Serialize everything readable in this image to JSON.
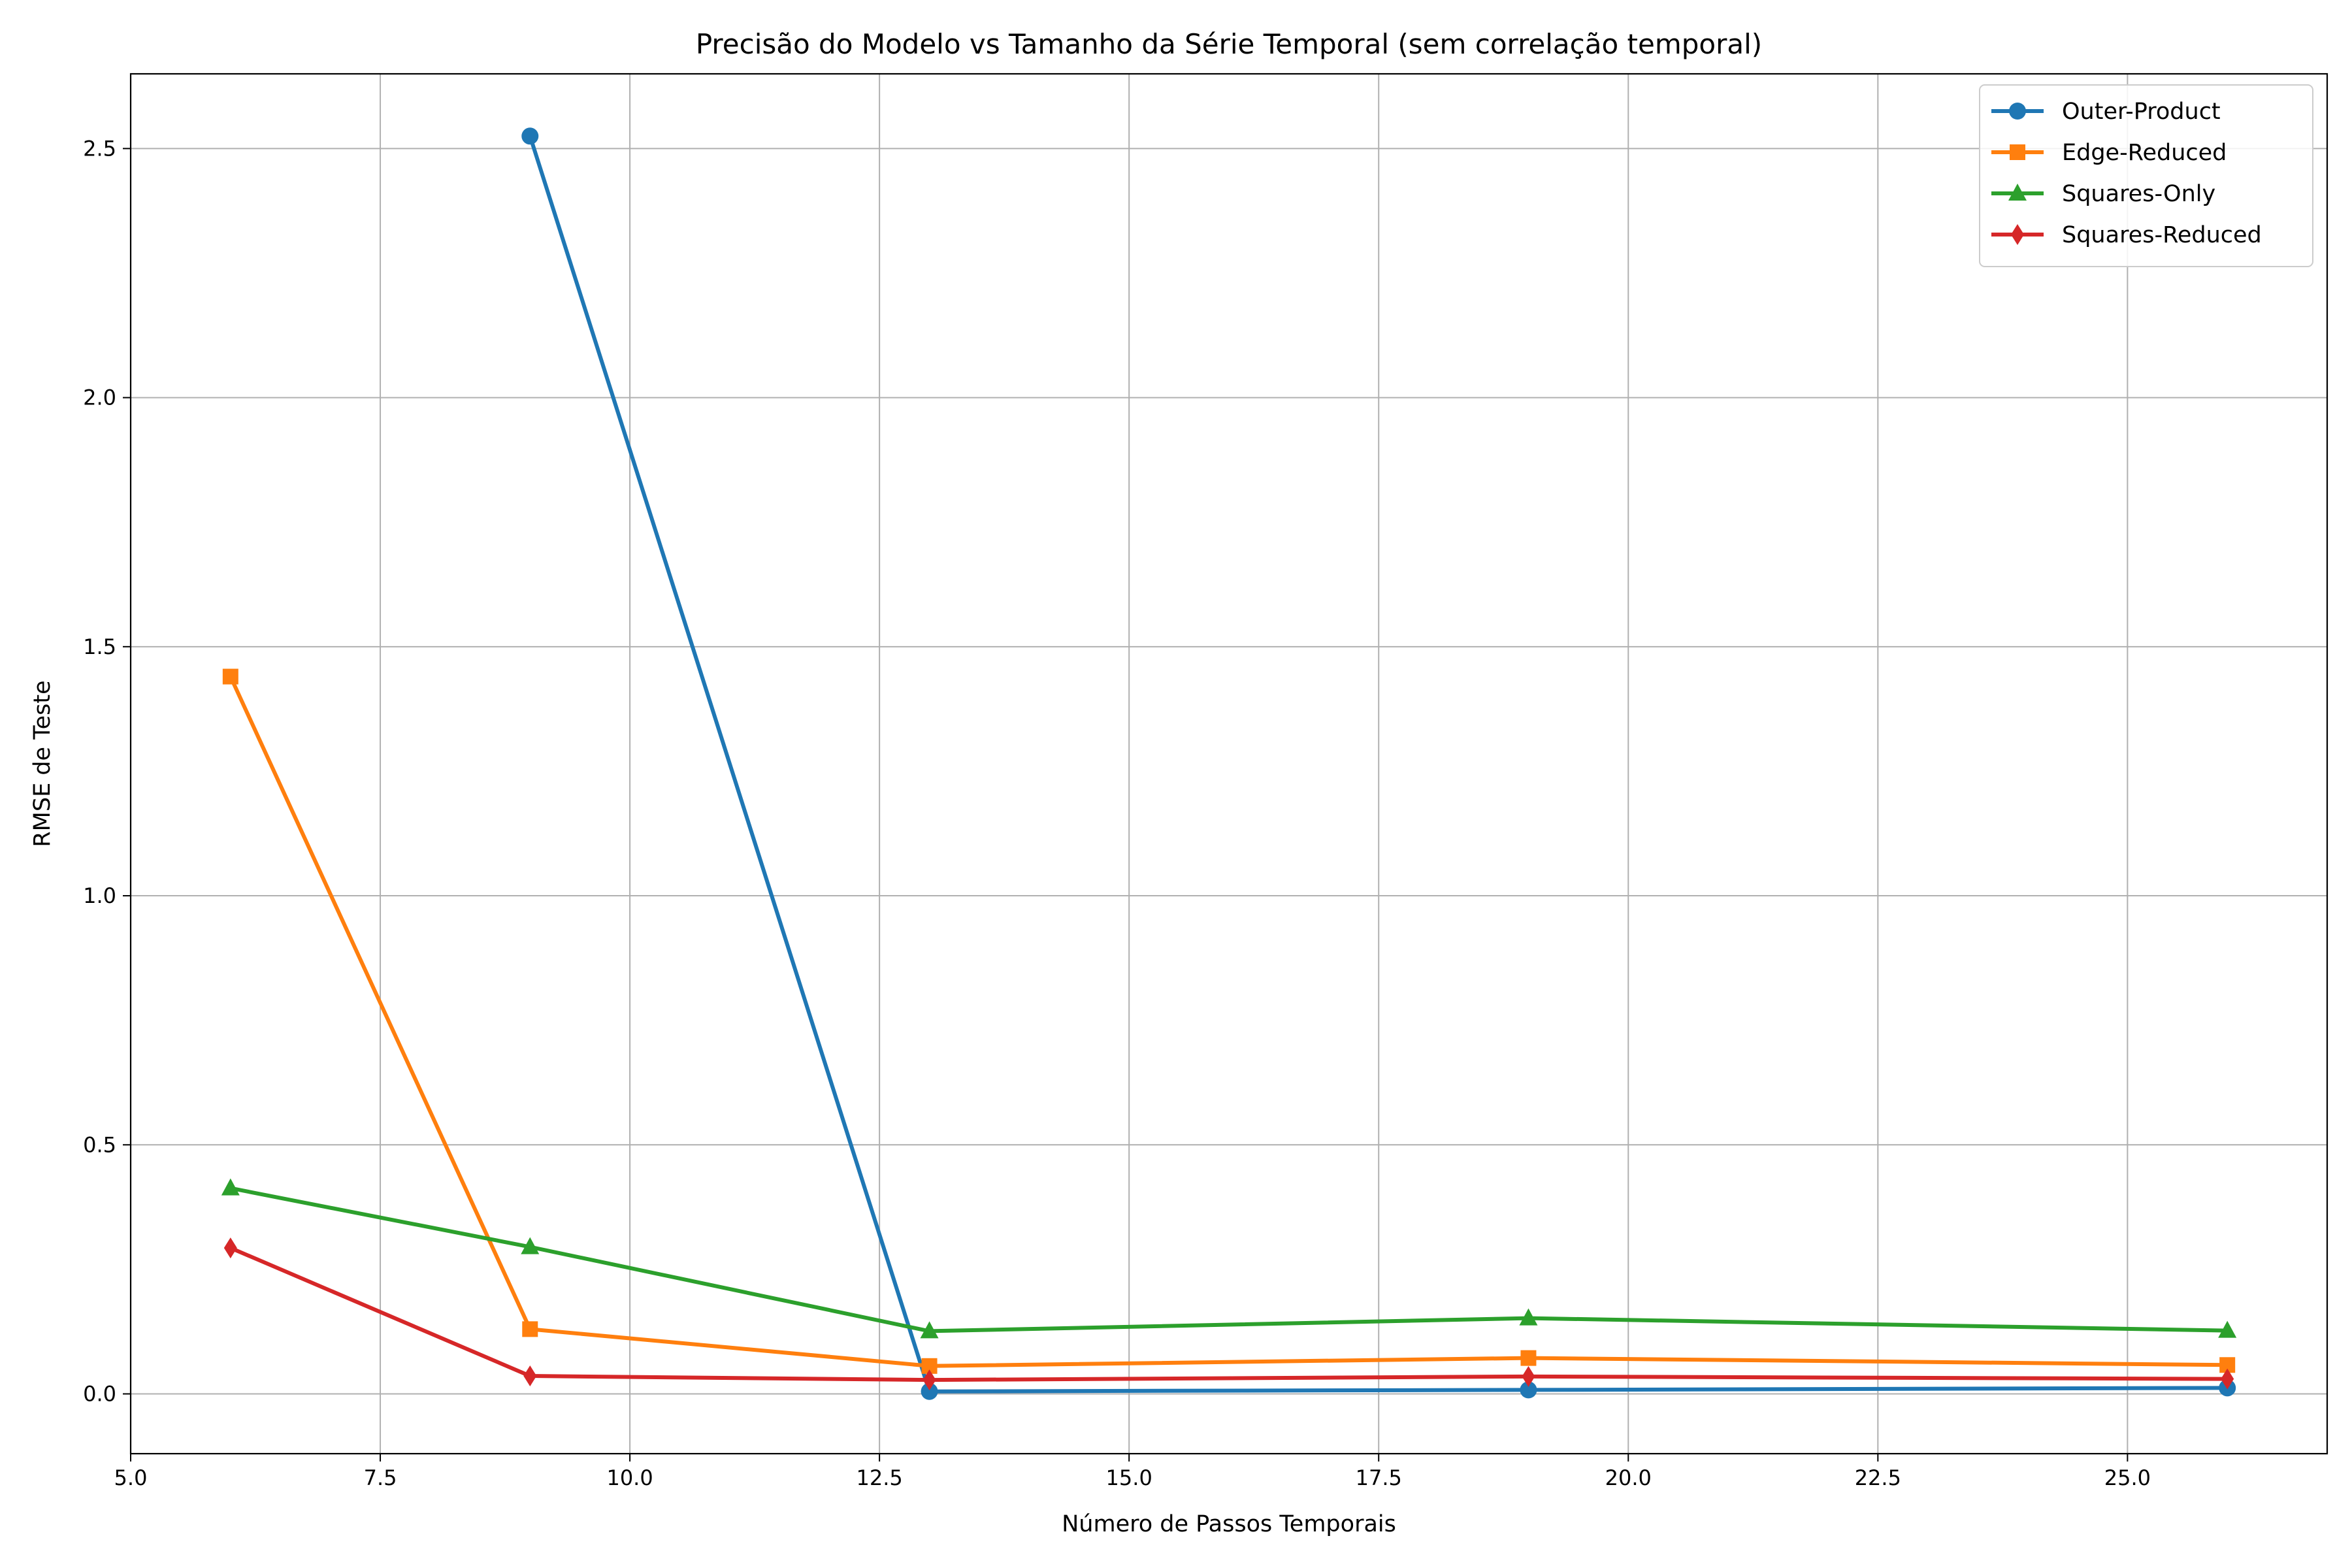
{
  "chart_data": {
    "type": "line",
    "title": "Precisão do Modelo vs Tamanho da Série Temporal (sem correlação temporal)",
    "xlabel": "Número de Passos Temporais",
    "ylabel": "RMSE de Teste",
    "xlim": [
      5.0,
      27.0
    ],
    "ylim": [
      -0.12,
      2.65
    ],
    "xticks": [
      5.0,
      7.5,
      10.0,
      12.5,
      15.0,
      17.5,
      20.0,
      22.5,
      25.0
    ],
    "xtick_labels": [
      "5.0",
      "7.5",
      "10.0",
      "12.5",
      "15.0",
      "17.5",
      "20.0",
      "22.5",
      "25.0"
    ],
    "yticks": [
      0.0,
      0.5,
      1.0,
      1.5,
      2.0,
      2.5
    ],
    "ytick_labels": [
      "0.0",
      "0.5",
      "1.0",
      "1.5",
      "2.0",
      "2.5"
    ],
    "grid": true,
    "legend_position": "top-right",
    "series": [
      {
        "name": "Outer-Product",
        "color": "#1f77b4",
        "marker": "circle",
        "x": [
          9,
          13,
          19,
          26
        ],
        "y": [
          2.525,
          0.005,
          0.008,
          0.012
        ]
      },
      {
        "name": "Edge-Reduced",
        "color": "#ff7f0e",
        "marker": "square",
        "x": [
          6,
          9,
          13,
          19,
          26
        ],
        "y": [
          1.44,
          0.13,
          0.056,
          0.072,
          0.058
        ]
      },
      {
        "name": "Squares-Only",
        "color": "#2ca02c",
        "marker": "triangle",
        "x": [
          6,
          9,
          13,
          19,
          26
        ],
        "y": [
          0.413,
          0.295,
          0.126,
          0.152,
          0.127
        ]
      },
      {
        "name": "Squares-Reduced",
        "color": "#d62728",
        "marker": "diamond",
        "x": [
          6,
          9,
          13,
          19,
          26
        ],
        "y": [
          0.293,
          0.036,
          0.028,
          0.035,
          0.03
        ]
      }
    ]
  }
}
